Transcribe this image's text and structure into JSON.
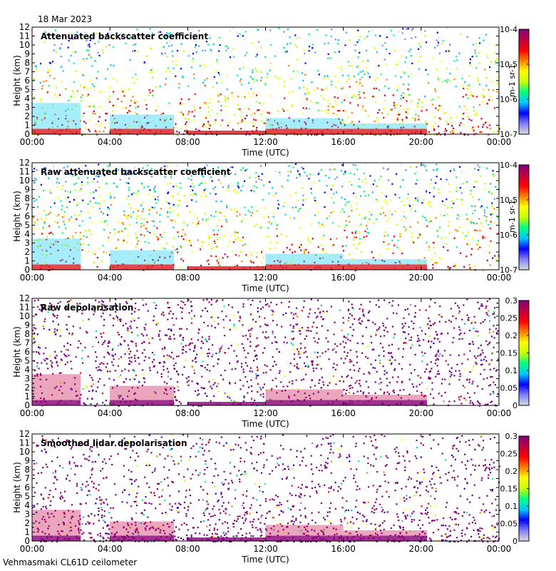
{
  "header": {
    "date": "18 Mar 2023"
  },
  "footer": {
    "site_label": "Vehmasmaki CL61D ceilometer"
  },
  "colors": {
    "scale": [
      "#dcdcdc",
      "#8080ff",
      "#0000ff",
      "#00c8ff",
      "#00ff80",
      "#c8ff00",
      "#ffff00",
      "#ff8000",
      "#ff0000",
      "#c00040",
      "#800080"
    ]
  },
  "chart_data": [
    {
      "type": "heatmap",
      "title": "Attenuated backscatter coefficient",
      "xlabel": "Time (UTC)",
      "ylabel": "Height (km)",
      "x_ticks": [
        "00:00",
        "04:00",
        "08:00",
        "12:00",
        "16:00",
        "20:00",
        "00:00"
      ],
      "y_ticks": [
        "0",
        "1",
        "2",
        "3",
        "4",
        "5",
        "6",
        "7",
        "8",
        "9",
        "10",
        "11",
        "12"
      ],
      "ylim": [
        0,
        12
      ],
      "xlim_hours": [
        0,
        24
      ],
      "colorbar": {
        "scale": "log",
        "ticks": [
          "10-7",
          "10-6",
          "10-5",
          "10-4"
        ],
        "unit_label": "m-1 sr-1"
      }
    },
    {
      "type": "heatmap",
      "title": "Raw attenuated backscatter coefficient",
      "xlabel": "Time (UTC)",
      "ylabel": "Height (km)",
      "x_ticks": [
        "00:00",
        "04:00",
        "08:00",
        "12:00",
        "16:00",
        "20:00",
        "00:00"
      ],
      "y_ticks": [
        "0",
        "1",
        "2",
        "3",
        "4",
        "5",
        "6",
        "7",
        "8",
        "9",
        "10",
        "11",
        "12"
      ],
      "ylim": [
        0,
        12
      ],
      "xlim_hours": [
        0,
        24
      ],
      "colorbar": {
        "scale": "log",
        "ticks": [
          "10-7",
          "10-6",
          "10-5",
          "10-4"
        ],
        "unit_label": "m-1 sr-1"
      }
    },
    {
      "type": "heatmap",
      "title": "Raw depolarisation",
      "xlabel": "Time (UTC)",
      "ylabel": "Height (km)",
      "x_ticks": [
        "00:00",
        "04:00",
        "08:00",
        "12:00",
        "16:00",
        "20:00",
        "00:00"
      ],
      "y_ticks": [
        "0",
        "1",
        "2",
        "3",
        "4",
        "5",
        "6",
        "7",
        "8",
        "9",
        "10",
        "11",
        "12"
      ],
      "ylim": [
        0,
        12
      ],
      "xlim_hours": [
        0,
        24
      ],
      "colorbar": {
        "scale": "linear",
        "ticks": [
          "0",
          "0.05",
          "0.1",
          "0.15",
          "0.2",
          "0.25",
          "0.3"
        ],
        "unit_label": ""
      }
    },
    {
      "type": "heatmap",
      "title": "Smoothed lidar depolarisation",
      "xlabel": "Time (UTC)",
      "ylabel": "Height (km)",
      "x_ticks": [
        "00:00",
        "04:00",
        "08:00",
        "12:00",
        "16:00",
        "20:00",
        "00:00"
      ],
      "y_ticks": [
        "0",
        "1",
        "2",
        "3",
        "4",
        "5",
        "6",
        "7",
        "8",
        "9",
        "10",
        "11",
        "12"
      ],
      "ylim": [
        0,
        12
      ],
      "xlim_hours": [
        0,
        24
      ],
      "colorbar": {
        "scale": "linear",
        "ticks": [
          "0",
          "0.05",
          "0.1",
          "0.15",
          "0.2",
          "0.25",
          "0.3"
        ],
        "unit_label": ""
      }
    }
  ]
}
